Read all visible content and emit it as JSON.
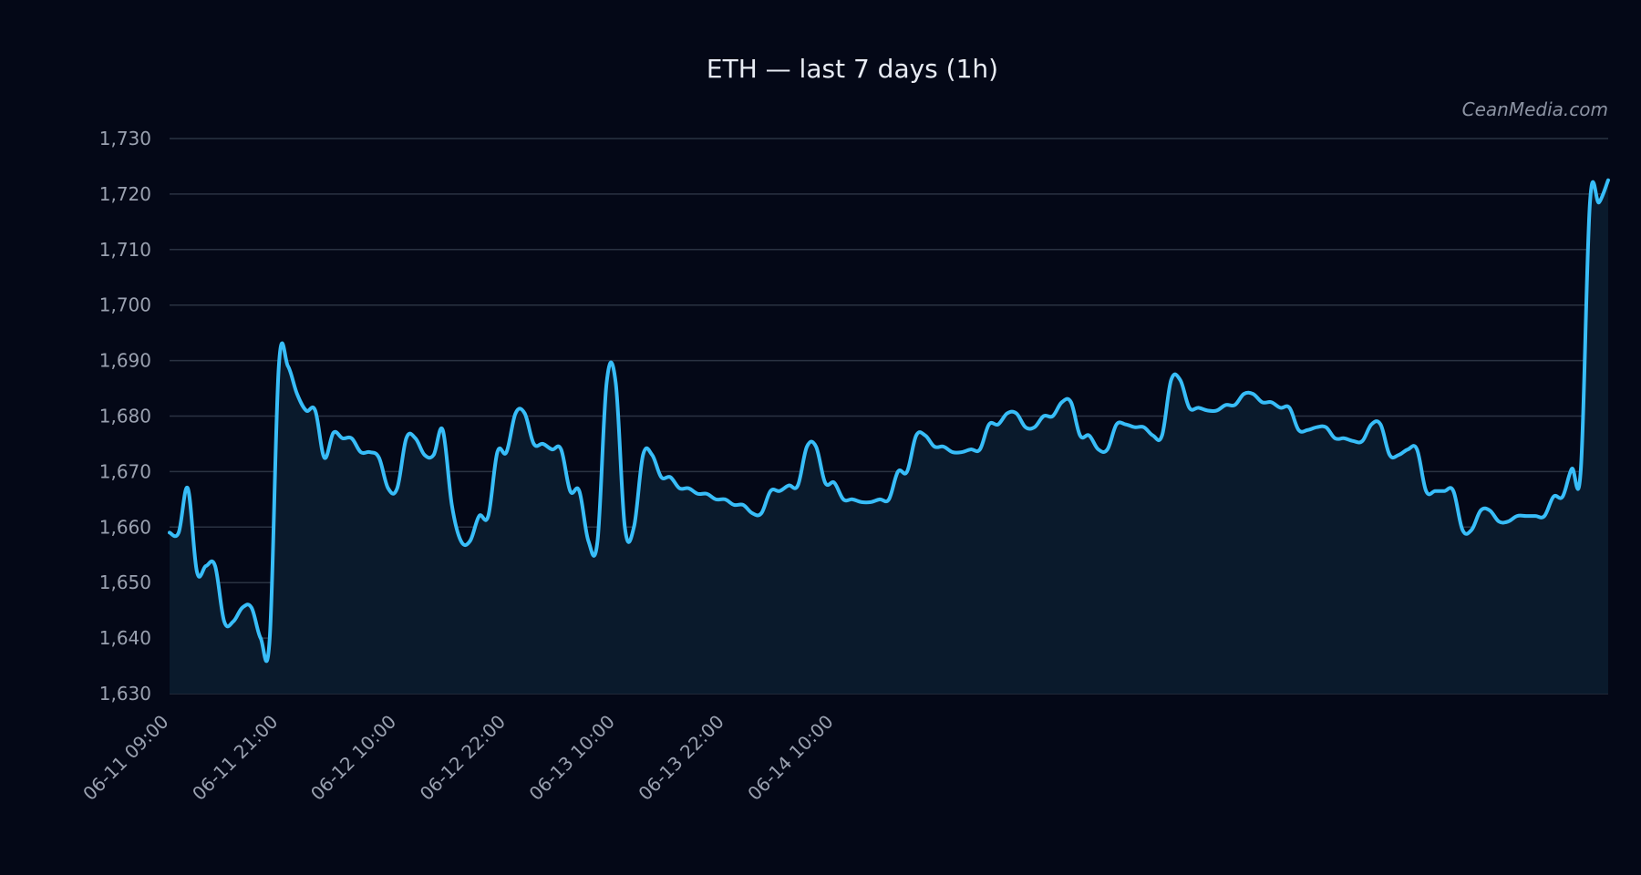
{
  "watermark": "CeanMedia.com",
  "colors": {
    "background": "#040817",
    "line": "#38bdf8",
    "area": "#0a1a2c",
    "grid": "#2a3242",
    "text": "#9aa1b0"
  },
  "chart_data": {
    "type": "line",
    "title": "ETH — last 7 days (1h)",
    "xlabel": "",
    "ylabel": "",
    "ylim": [
      1630,
      1730
    ],
    "yticks": [
      "1,630",
      "1,640",
      "1,650",
      "1,660",
      "1,670",
      "1,680",
      "1,690",
      "1,700",
      "1,710",
      "1,720",
      "1,730"
    ],
    "ytick_values": [
      1630,
      1640,
      1650,
      1660,
      1670,
      1680,
      1690,
      1700,
      1710,
      1720,
      1730
    ],
    "x_start": "06-11 09:00",
    "x_end": "06-14 23:00",
    "xticks": [
      "06-11 09:00",
      "06-11 21:00",
      "06-12 10:00",
      "06-12 22:00",
      "06-13 10:00",
      "06-13 22:00",
      "06-14 10:00"
    ],
    "grid": true,
    "legend": "none",
    "series": [
      {
        "values": [
          1659,
          1659,
          1667,
          1652,
          1653,
          1653,
          1643,
          1643,
          1645.5,
          1645.5,
          1640,
          1640,
          1689,
          1689,
          1684,
          1681,
          1681,
          1672.5,
          1677,
          1676,
          1676,
          1673.5,
          1673.5,
          1672.5,
          1667,
          1667,
          1676,
          1676,
          1673,
          1673,
          1677.5,
          1664,
          1657.5,
          1657.5,
          1662,
          1662,
          1673.5,
          1673.5,
          1680.5,
          1680.5,
          1675,
          1675,
          1674,
          1674,
          1666.5,
          1666.5,
          1657.5,
          1657.5,
          1686,
          1686,
          1660,
          1660,
          1673,
          1673,
          1669,
          1669,
          1667,
          1667,
          1666,
          1666,
          1665,
          1665,
          1664,
          1664,
          1662.5,
          1662.5,
          1666.5,
          1666.5,
          1667.5,
          1667.5,
          1674.5,
          1674.5,
          1668,
          1668,
          1665,
          1665,
          1664.5,
          1664.5,
          1665,
          1665,
          1670,
          1670,
          1676.5,
          1676.5,
          1674.5,
          1674.5,
          1673.5,
          1673.5,
          1674,
          1674,
          1678.5,
          1678.5,
          1680.5,
          1680.5,
          1678,
          1678,
          1680,
          1680,
          1682.5,
          1682.5,
          1676.5,
          1676.5,
          1674,
          1674,
          1678.5,
          1678.5,
          1678,
          1678,
          1676.5,
          1676.5,
          1686.5,
          1686.5,
          1681.5,
          1681.5,
          1681,
          1681,
          1682,
          1682,
          1684,
          1684,
          1682.5,
          1682.5,
          1681.5,
          1681.5,
          1677.5,
          1677.5,
          1678,
          1678,
          1676,
          1676,
          1675.5,
          1675.5,
          1678.5,
          1678.5,
          1673,
          1673,
          1674,
          1674,
          1666.5,
          1666.5,
          1666.5,
          1666.5,
          1659.5,
          1659.5,
          1663,
          1663,
          1661,
          1661,
          1662,
          1662,
          1662,
          1662,
          1665.5,
          1665.5,
          1670.5,
          1670.5,
          1718.5,
          1718.5,
          1722.5
        ]
      }
    ]
  }
}
